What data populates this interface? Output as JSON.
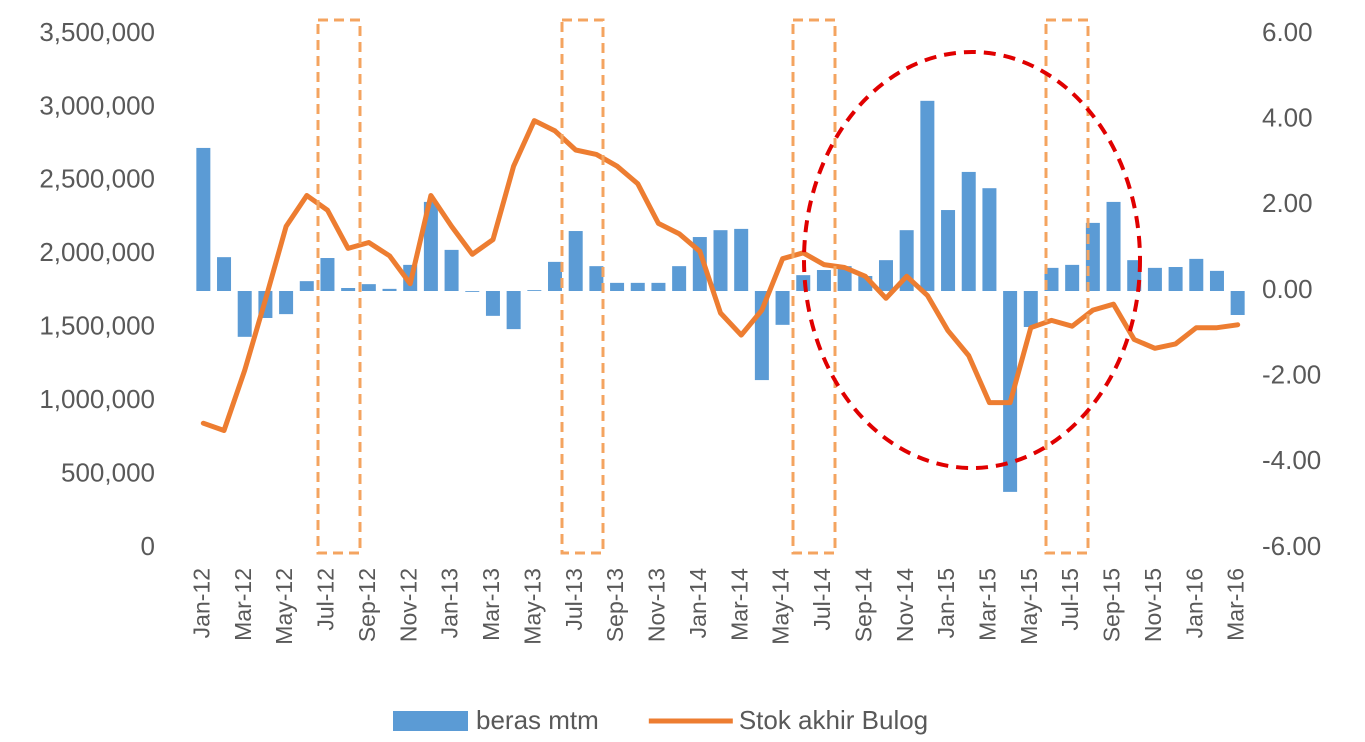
{
  "chart_data": {
    "type": "bar-line",
    "categories": [
      "Jan-12",
      null,
      "Mar-12",
      null,
      "May-12",
      null,
      "Jul-12",
      null,
      "Sep-12",
      null,
      "Nov-12",
      null,
      "Jan-13",
      null,
      "Mar-13",
      null,
      "May-13",
      null,
      "Jul-13",
      null,
      "Sep-13",
      null,
      "Nov-13",
      null,
      "Jan-14",
      null,
      "Mar-14",
      null,
      "May-14",
      null,
      "Jul-14",
      null,
      "Sep-14",
      null,
      "Nov-14",
      null,
      "Jan-15",
      null,
      "Mar-15",
      null,
      "May-15",
      null,
      "Jul-15",
      null,
      "Sep-15",
      null,
      "Nov-15",
      null,
      "Jan-16",
      null,
      "Mar-16"
    ],
    "series": [
      {
        "name": "beras mtm",
        "type": "bar",
        "axis": "y2",
        "color": "#5b9bd5",
        "values": [
          3.34,
          0.79,
          -1.07,
          -0.63,
          -0.54,
          0.23,
          0.77,
          0.07,
          0.16,
          0.05,
          0.61,
          2.08,
          0.96,
          -0.02,
          -0.58,
          -0.89,
          0.02,
          0.68,
          1.4,
          0.58,
          0.19,
          0.19,
          0.19,
          0.58,
          1.26,
          1.42,
          1.45,
          -2.08,
          -0.79,
          0.37,
          0.49,
          0.58,
          0.35,
          0.72,
          1.42,
          4.44,
          1.89,
          2.78,
          2.4,
          -4.69,
          -0.84,
          0.54,
          0.61,
          1.59,
          2.08,
          0.72,
          0.54,
          0.56,
          0.75,
          0.47,
          -0.56
        ]
      },
      {
        "name": "Stok akhir Bulog",
        "type": "line",
        "axis": "y",
        "color": "#ed7d31",
        "values": [
          850000,
          800000,
          1210000,
          1690000,
          2190000,
          2400000,
          2300000,
          2040000,
          2080000,
          1990000,
          1800000,
          2400000,
          2190000,
          2000000,
          2100000,
          2600000,
          2910000,
          2840000,
          2710000,
          2680000,
          2600000,
          2480000,
          2210000,
          2140000,
          2020000,
          1600000,
          1450000,
          1620000,
          1970000,
          2010000,
          1930000,
          1910000,
          1850000,
          1700000,
          1850000,
          1720000,
          1480000,
          1310000,
          990000,
          990000,
          1500000,
          1550000,
          1510000,
          1620000,
          1660000,
          1420000,
          1360000,
          1390000,
          1500000,
          1500000,
          1520000
        ]
      }
    ],
    "ylim": [
      0,
      3500000
    ],
    "yticks": [
      0,
      {
        "value": 500000,
        "label": "500,000"
      },
      {
        "value": 1000000,
        "label": "1,000,000"
      },
      {
        "value": 1500000,
        "label": "1,500,000"
      },
      {
        "value": 2000000,
        "label": "2,000,000"
      },
      {
        "value": 2500000,
        "label": "2,500,000"
      },
      {
        "value": 3000000,
        "label": "3,000,000"
      },
      {
        "value": 3500000,
        "label": "3,500,000"
      }
    ],
    "y2lim": [
      -6,
      6
    ],
    "y2ticks": [
      {
        "value": -6,
        "label": "-6.00"
      },
      {
        "value": -4,
        "label": "-4.00"
      },
      {
        "value": -2,
        "label": "-2.00"
      },
      {
        "value": 0,
        "label": "0.00"
      },
      {
        "value": 2,
        "label": "2.00"
      },
      {
        "value": 4,
        "label": "4.00"
      },
      {
        "value": 6,
        "label": "6.00"
      }
    ],
    "legend": "bottom"
  }
}
